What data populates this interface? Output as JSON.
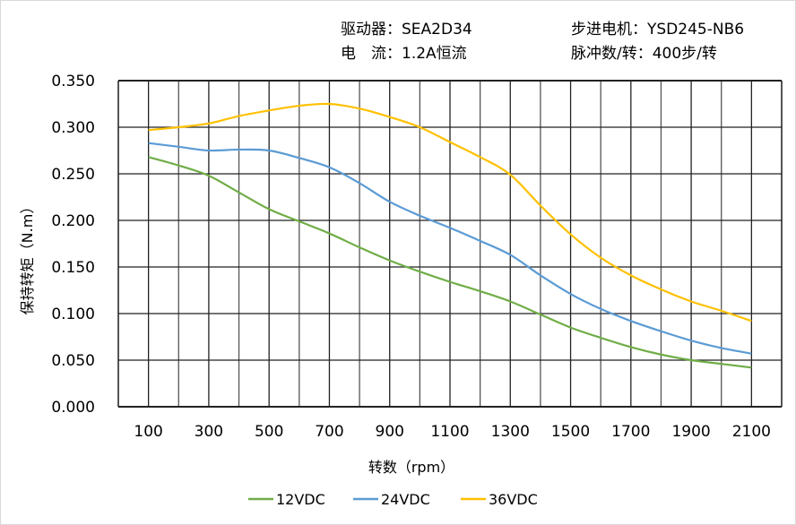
{
  "header": {
    "driver": "驱动器：SEA2D34",
    "motor": "步进电机：YSD245-NB6",
    "current": "电　流：1.2A恒流",
    "pulses": "脉冲数/转：400步/转"
  },
  "chart_data": {
    "type": "line",
    "xlabel": "转数（rpm）",
    "ylabel": "保持转矩（N.m）",
    "xlim": [
      0,
      2200
    ],
    "ylim": [
      0,
      0.35
    ],
    "grid": true,
    "legend": "bottom",
    "x": [
      100,
      200,
      300,
      400,
      500,
      600,
      700,
      800,
      900,
      1000,
      1100,
      1200,
      1300,
      1400,
      1500,
      1600,
      1700,
      1800,
      1900,
      2000,
      2100
    ],
    "x_ticks": [
      "100",
      "300",
      "500",
      "700",
      "900",
      "1100",
      "1300",
      "1500",
      "1700",
      "1900",
      "2100"
    ],
    "y_ticks": [
      "0.000",
      "0.050",
      "0.100",
      "0.150",
      "0.200",
      "0.250",
      "0.300",
      "0.350"
    ],
    "series": [
      {
        "name": "12VDC",
        "color": "#70AD47",
        "values": [
          0.268,
          0.259,
          0.248,
          0.23,
          0.212,
          0.199,
          0.186,
          0.171,
          0.157,
          0.145,
          0.134,
          0.124,
          0.113,
          0.099,
          0.085,
          0.074,
          0.064,
          0.056,
          0.05,
          0.046,
          0.042
        ]
      },
      {
        "name": "24VDC",
        "color": "#5B9BD5",
        "values": [
          0.283,
          0.279,
          0.275,
          0.276,
          0.275,
          0.267,
          0.257,
          0.24,
          0.22,
          0.205,
          0.192,
          0.178,
          0.163,
          0.141,
          0.121,
          0.105,
          0.092,
          0.081,
          0.071,
          0.063,
          0.057
        ]
      },
      {
        "name": "36VDC",
        "color": "#FFC000",
        "values": [
          0.297,
          0.3,
          0.304,
          0.312,
          0.318,
          0.323,
          0.325,
          0.32,
          0.311,
          0.3,
          0.284,
          0.268,
          0.249,
          0.216,
          0.185,
          0.16,
          0.141,
          0.126,
          0.113,
          0.103,
          0.092
        ]
      }
    ]
  }
}
